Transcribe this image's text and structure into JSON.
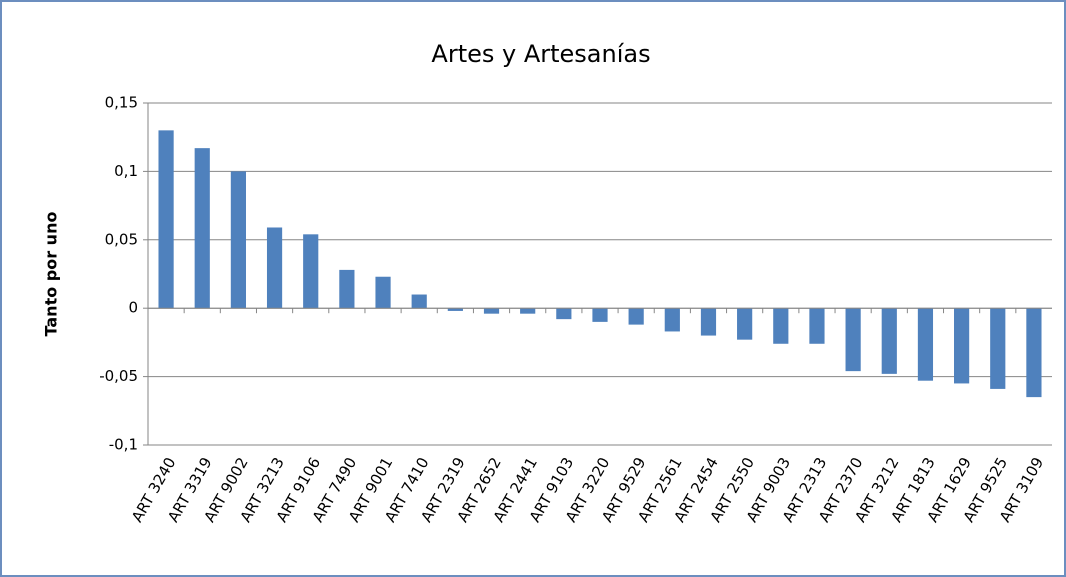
{
  "chart_data": {
    "type": "bar",
    "title": "Artes y Artesanías",
    "y_label": "Tanto por uno",
    "categories": [
      "ART 3240",
      "ART 3319",
      "ART 9002",
      "ART 3213",
      "ART 9106",
      "ART 7490",
      "ART 9001",
      "ART 7410",
      "ART 2319",
      "ART 2652",
      "ART 2441",
      "ART 9103",
      "ART 3220",
      "ART 9529",
      "ART 2561",
      "ART 2454",
      "ART 2550",
      "ART 9003",
      "ART 2313",
      "ART 2370",
      "ART 3212",
      "ART 1813",
      "ART 1629",
      "ART 9525",
      "ART 3109"
    ],
    "values": [
      0.13,
      0.117,
      0.1,
      0.059,
      0.054,
      0.028,
      0.023,
      0.01,
      -0.002,
      -0.004,
      -0.004,
      -0.008,
      -0.01,
      -0.012,
      -0.017,
      -0.02,
      -0.023,
      -0.026,
      -0.026,
      -0.046,
      -0.048,
      -0.053,
      -0.055,
      -0.059,
      -0.065
    ],
    "color": "#4f81bd",
    "ylim": [
      -0.1,
      0.15
    ],
    "yticks": [
      {
        "value": -0.1,
        "label": "-0,1"
      },
      {
        "value": -0.05,
        "label": "-0,05"
      },
      0,
      {
        "value": 0.05,
        "label": "0,05"
      },
      {
        "value": 0.1,
        "label": "0,1"
      },
      {
        "value": 0.15,
        "label": "0,15"
      }
    ],
    "grid": true
  }
}
